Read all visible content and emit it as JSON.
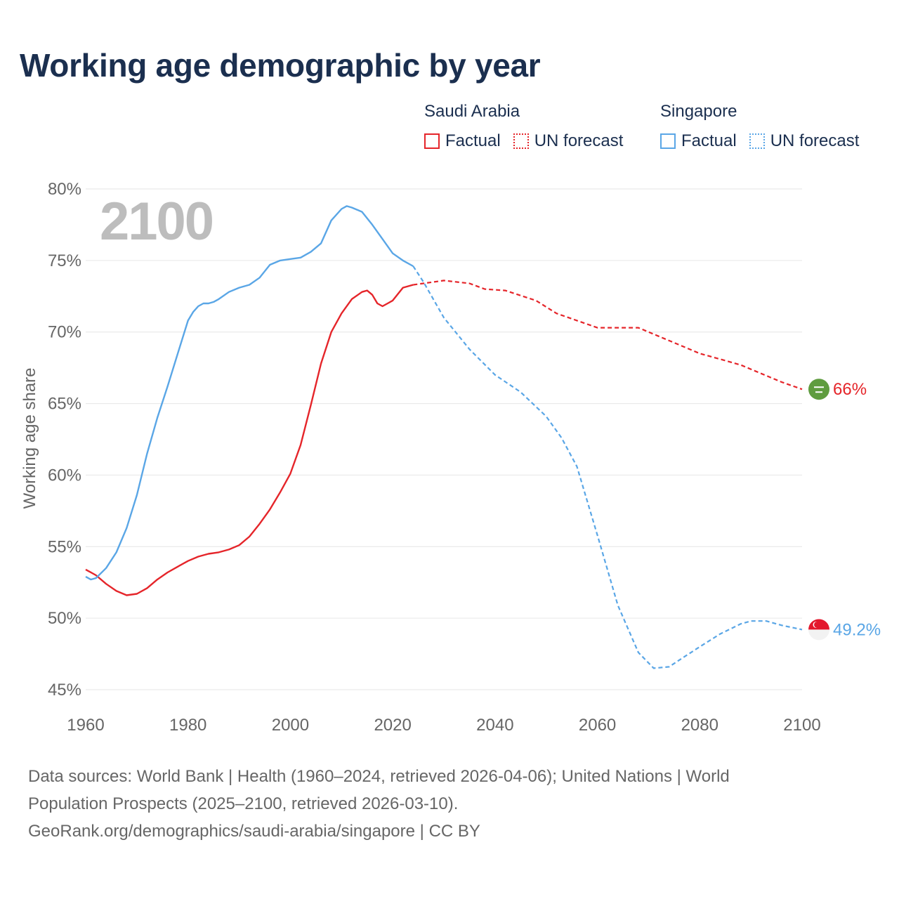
{
  "title": "Working age demographic by year",
  "legend": {
    "groups": [
      {
        "country": "Saudi Arabia",
        "factual": "Factual",
        "forecast": "UN forecast"
      },
      {
        "country": "Singapore",
        "factual": "Factual",
        "forecast": "UN forecast"
      }
    ]
  },
  "colors": {
    "saudi_arabia": "#e5252a",
    "singapore": "#5aa6e6",
    "title": "#1b2f4f",
    "axis_text": "#666666",
    "year_watermark": "#bdbdbd"
  },
  "chart_data": {
    "type": "line",
    "title": "Working age demographic by year",
    "ylabel": "Working age share",
    "xlabel": "",
    "xlim": [
      1960,
      2100
    ],
    "ylim": [
      45,
      80
    ],
    "x_ticks": [
      "1960",
      "1980",
      "2000",
      "2020",
      "2040",
      "2060",
      "2080",
      "2100"
    ],
    "x_tick_values": [
      1960,
      1980,
      2000,
      2020,
      2040,
      2060,
      2080,
      2100
    ],
    "y_ticks": [
      "45%",
      "50%",
      "55%",
      "60%",
      "65%",
      "70%",
      "75%",
      "80%"
    ],
    "y_tick_values": [
      45,
      50,
      55,
      60,
      65,
      70,
      75,
      80
    ],
    "grid": true,
    "year_label": "2100",
    "factual_until": 2024,
    "series": [
      {
        "name": "Saudi Arabia",
        "end_label": "66%",
        "flag_icon": "saudi-arabia-flag-icon",
        "x": [
          1960,
          1962,
          1964,
          1966,
          1968,
          1970,
          1972,
          1974,
          1976,
          1978,
          1980,
          1982,
          1984,
          1986,
          1988,
          1990,
          1992,
          1994,
          1996,
          1998,
          2000,
          2002,
          2004,
          2006,
          2008,
          2010,
          2012,
          2014,
          2015,
          2016,
          2017,
          2018,
          2019,
          2020,
          2022,
          2024,
          2026,
          2030,
          2035,
          2038,
          2042,
          2048,
          2052,
          2056,
          2060,
          2064,
          2068,
          2072,
          2076,
          2080,
          2084,
          2088,
          2092,
          2096,
          2100
        ],
        "y": [
          53.4,
          53.0,
          52.4,
          51.9,
          51.6,
          51.7,
          52.1,
          52.7,
          53.2,
          53.6,
          54.0,
          54.3,
          54.5,
          54.6,
          54.8,
          55.1,
          55.7,
          56.6,
          57.6,
          58.8,
          60.1,
          62.1,
          64.9,
          67.8,
          70.0,
          71.3,
          72.3,
          72.8,
          72.9,
          72.6,
          72.0,
          71.8,
          72.0,
          72.2,
          73.1,
          73.3,
          73.4,
          73.6,
          73.4,
          73.0,
          72.9,
          72.2,
          71.3,
          70.8,
          70.3,
          70.3,
          70.3,
          69.7,
          69.1,
          68.5,
          68.1,
          67.7,
          67.1,
          66.5,
          66.0
        ]
      },
      {
        "name": "Singapore",
        "end_label": "49.2%",
        "flag_icon": "singapore-flag-icon",
        "x": [
          1960,
          1961,
          1962,
          1964,
          1966,
          1968,
          1970,
          1972,
          1974,
          1976,
          1978,
          1980,
          1981,
          1982,
          1983,
          1984,
          1985,
          1986,
          1988,
          1990,
          1992,
          1994,
          1996,
          1998,
          2000,
          2002,
          2004,
          2006,
          2008,
          2010,
          2011,
          2012,
          2014,
          2016,
          2018,
          2020,
          2022,
          2024,
          2026,
          2030,
          2035,
          2040,
          2045,
          2050,
          2053,
          2056,
          2060,
          2064,
          2068,
          2071,
          2074,
          2077,
          2080,
          2084,
          2088,
          2090,
          2093,
          2096,
          2100
        ],
        "y": [
          52.9,
          52.7,
          52.8,
          53.5,
          54.6,
          56.3,
          58.6,
          61.5,
          64.0,
          66.2,
          68.5,
          70.8,
          71.4,
          71.8,
          72.0,
          72.0,
          72.1,
          72.3,
          72.8,
          73.1,
          73.3,
          73.8,
          74.7,
          75.0,
          75.1,
          75.2,
          75.6,
          76.2,
          77.8,
          78.6,
          78.8,
          78.7,
          78.4,
          77.5,
          76.5,
          75.5,
          75.0,
          74.6,
          73.5,
          71.0,
          68.8,
          67.0,
          65.8,
          64.1,
          62.6,
          60.6,
          55.8,
          50.9,
          47.6,
          46.5,
          46.6,
          47.3,
          48.0,
          48.9,
          49.6,
          49.8,
          49.8,
          49.5,
          49.2
        ]
      }
    ]
  },
  "footer": {
    "line1": "Data sources: World Bank | Health (1960–2024, retrieved 2026-04-06); United Nations | World",
    "line2": "Population Prospects (2025–2100, retrieved 2026-03-10).",
    "line3": "GeoRank.org/demographics/saudi-arabia/singapore | CC BY"
  }
}
